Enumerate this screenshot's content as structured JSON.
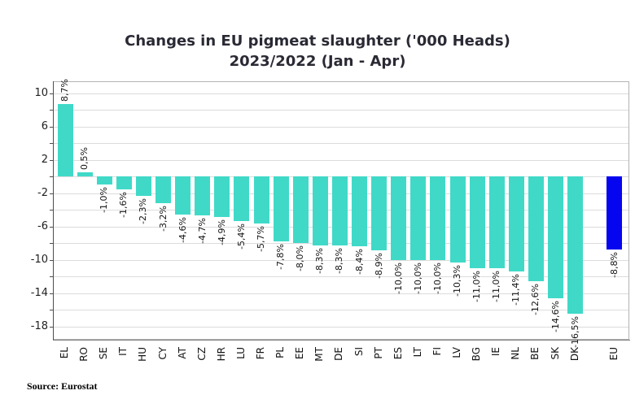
{
  "title": {
    "line1": "Changes in EU pigmeat slaughter ('000 Heads)",
    "line2": "2023/2022 (Jan - Apr)"
  },
  "source": "Source: Eurostat",
  "colors": {
    "bar": "#40d9c8",
    "eu_bar": "#0505f0",
    "gridline": "#dcdcdc",
    "plot_border": "#b3b3b3",
    "axis": "#4d4d4d",
    "label_text": "#141414",
    "title_text": "#2a2a35"
  },
  "chart_data": {
    "type": "bar",
    "title": "Changes in EU pigmeat slaughter ('000 Heads) 2023/2022 (Jan - Apr)",
    "categories": [
      "EL",
      "RO",
      "SE",
      "IT",
      "HU",
      "CY",
      "AT",
      "CZ",
      "HR",
      "LU",
      "FR",
      "PL",
      "EE",
      "MT",
      "DE",
      "SI",
      "PT",
      "ES",
      "LT",
      "FI",
      "LV",
      "BG",
      "IE",
      "NL",
      "BE",
      "SK",
      "DK",
      "EU"
    ],
    "values": [
      8.7,
      0.5,
      -1.0,
      -1.6,
      -2.3,
      -3.2,
      -4.6,
      -4.7,
      -4.9,
      -5.4,
      -5.7,
      -7.8,
      -8.0,
      -8.3,
      -8.3,
      -8.4,
      -8.9,
      -10.0,
      -10.0,
      -10.0,
      -10.3,
      -11.0,
      -11.0,
      -11.4,
      -12.6,
      -14.6,
      -16.5,
      -8.8
    ],
    "labels": [
      "8,7%",
      "0,5%",
      "-1,0%",
      "-1,6%",
      "-2,3%",
      "-3,2%",
      "-4,6%",
      "-4,7%",
      "-4,9%",
      "-5,4%",
      "-5,7%",
      "-7,8%",
      "-8,0%",
      "-8,3%",
      "-8,3%",
      "-8,4%",
      "-8,9%",
      "-10,0%",
      "-10,0%",
      "-10,0%",
      "-10,3%",
      "-11,0%",
      "-11,0%",
      "-11,4%",
      "-12,6%",
      "-14,6%",
      "-16,5%",
      "-8,8%"
    ],
    "highlight_category": "EU",
    "gap_before_last": true,
    "xlabel": "",
    "ylabel": "",
    "ylim": [
      -19.6,
      11.4
    ],
    "ytick_labels": [
      10,
      6,
      2,
      -2,
      -6,
      -10,
      -14,
      -18
    ],
    "ytick_minor_step": 2,
    "grid": "horizontal every 2 units",
    "legend": "none"
  }
}
